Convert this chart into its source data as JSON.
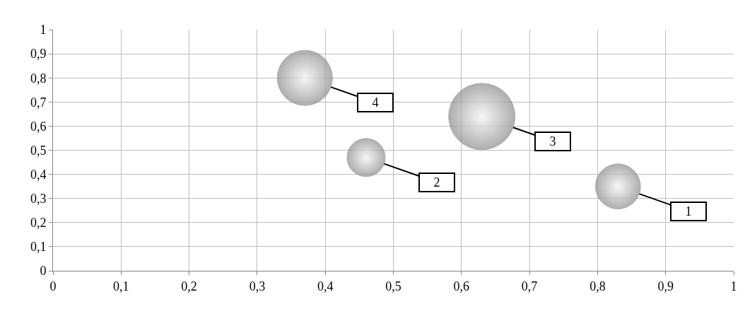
{
  "chart_data": {
    "type": "bubble",
    "x": [
      0.83,
      0.46,
      0.63,
      0.37
    ],
    "values": [
      0.35,
      0.47,
      0.64,
      0.8
    ],
    "sizes": [
      0.46,
      0.33,
      1,
      0.69
    ],
    "color": "#8c8c8c",
    "grid": true,
    "xlim": [
      0,
      1
    ],
    "xticks": [
      0,
      {
        "value": 0.1,
        "label": "0,1"
      },
      {
        "value": 0.2,
        "label": "0,2"
      },
      {
        "value": 0.3,
        "label": "0,3"
      },
      {
        "value": 0.4,
        "label": "0,4"
      },
      {
        "value": 0.5,
        "label": "0,5"
      },
      {
        "value": 0.6,
        "label": "0,6"
      },
      {
        "value": 0.7,
        "label": "0,7"
      },
      {
        "value": 0.8,
        "label": "0,8"
      },
      {
        "value": 0.9,
        "label": "0,9"
      },
      1
    ],
    "ylim": [
      0,
      1
    ],
    "yticks": [
      0,
      {
        "value": 0.1,
        "label": "0,1"
      },
      {
        "value": 0.2,
        "label": "0,2"
      },
      {
        "value": 0.3,
        "label": "0,3"
      },
      {
        "value": 0.4,
        "label": "0,4"
      },
      {
        "value": 0.5,
        "label": "0,5"
      },
      {
        "value": 0.6,
        "label": "0,6"
      },
      {
        "value": 0.7,
        "label": "0,7"
      },
      {
        "value": 0.8,
        "label": "0,8"
      },
      {
        "value": 0.9,
        "label": "0,9"
      },
      1
    ],
    "annotations": [
      {
        "text": "1",
        "x": 0.83,
        "y": 0.35
      },
      {
        "text": "2",
        "x": 0.46,
        "y": 0.47
      },
      {
        "text": "3",
        "x": 0.63,
        "y": 0.64
      },
      {
        "text": "4",
        "x": 0.37,
        "y": 0.8
      }
    ]
  }
}
